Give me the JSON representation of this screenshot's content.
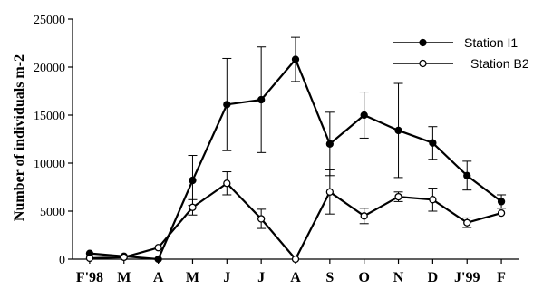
{
  "chart_data": {
    "type": "line",
    "title": "",
    "xlabel": "",
    "ylabel": "Number of individuals m-2",
    "categories": [
      "F'98",
      "M",
      "A",
      "M",
      "J",
      "J",
      "A",
      "S",
      "O",
      "N",
      "D",
      "J'99",
      "F"
    ],
    "ylim": [
      0,
      25000
    ],
    "yticks": [
      0,
      5000,
      10000,
      15000,
      20000,
      25000
    ],
    "grid": false,
    "legend_position": "top-right",
    "series": [
      {
        "name": "Station I1",
        "marker": "filled-circle",
        "values": [
          600,
          300,
          0,
          8200,
          16100,
          16600,
          20800,
          12000,
          15000,
          13400,
          12100,
          8700,
          6000
        ],
        "error": [
          null,
          null,
          null,
          2600,
          4800,
          5500,
          2300,
          3300,
          2400,
          4900,
          1700,
          1500,
          700
        ]
      },
      {
        "name": "Station B2",
        "marker": "open-circle",
        "values": [
          100,
          200,
          1200,
          5400,
          7900,
          4200,
          0,
          7000,
          4500,
          6500,
          6200,
          3800,
          4800
        ],
        "error": [
          null,
          null,
          null,
          800,
          1200,
          1000,
          null,
          2300,
          800,
          500,
          1200,
          500,
          null
        ]
      }
    ]
  }
}
